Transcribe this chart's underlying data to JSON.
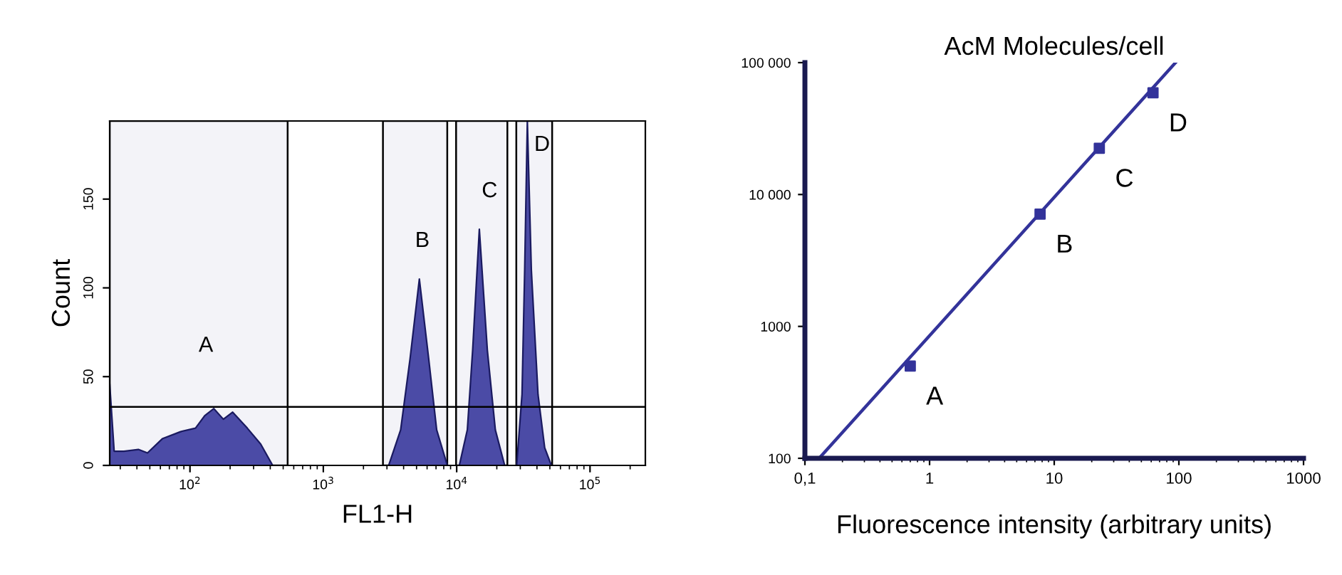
{
  "chart_data": [
    {
      "type": "area",
      "xlabel": "FL1-H",
      "ylabel": "Count",
      "log": "x",
      "xlim": [
        25,
        260000
      ],
      "ylim": [
        0,
        194
      ],
      "xticks": [
        {
          "value": 100,
          "label": "10$^{2}$"
        },
        {
          "value": 1000,
          "label": "10$^{3}$"
        },
        {
          "value": 10000,
          "label": "10$^{4}$"
        },
        {
          "value": 100000,
          "label": "10$^{5}$"
        }
      ],
      "yticks": [
        0,
        50,
        100,
        150
      ],
      "series": [
        {
          "color": "#4b4ba6",
          "x": [
            25,
            27,
            32,
            41,
            48,
            62,
            85,
            110,
            129,
            151,
            178,
            209,
            269,
            339,
            417,
            3090,
            3800,
            4470,
            5250,
            6170,
            7080,
            8510,
            10470,
            12020,
            13180,
            14790,
            16980,
            19500,
            22910,
            28180,
            30900,
            32360,
            33880,
            36310,
            40740,
            45710,
            51290
          ],
          "values": [
            46,
            8,
            8,
            9,
            7,
            15,
            19,
            21,
            28,
            32,
            26,
            30,
            21,
            12,
            0,
            0,
            20,
            60,
            105,
            60,
            20,
            0,
            0,
            20,
            65,
            133,
            65,
            20,
            0,
            0,
            40,
            110,
            194,
            110,
            40,
            10,
            0
          ]
        }
      ],
      "bands": [
        {
          "axis": "x",
          "from": 25,
          "to": 540,
          "label": "A",
          "color": "#f3f3f8"
        },
        {
          "axis": "x",
          "from": 2800,
          "to": 8500,
          "label": "B",
          "color": "#f3f3f8"
        },
        {
          "axis": "x",
          "from": 9900,
          "to": 24000,
          "label": "C",
          "color": "#f3f3f8"
        },
        {
          "axis": "x",
          "from": 28000,
          "to": 52000,
          "label": "D",
          "color": "#f3f3f8"
        }
      ],
      "ref_lines": [
        {
          "axis": "y",
          "value": 33,
          "color": "#000000"
        }
      ]
    },
    {
      "type": "scatter",
      "title": "AcM Molecules/cell",
      "xlabel": "Fluorescence intensity (arbitrary units)",
      "log": "xy",
      "xlim": [
        0.1,
        1000
      ],
      "ylim": [
        100,
        100000
      ],
      "xticks": [
        {
          "value": 0.1,
          "label": "0,1"
        },
        1,
        10,
        100,
        1000
      ],
      "yticks": [
        100,
        1000,
        {
          "value": 10000,
          "label": "10 000"
        },
        {
          "value": 100000,
          "label": "100 000"
        }
      ],
      "series": [
        {
          "type": "line",
          "color": "#33339a",
          "x": [
            0.13,
            94
          ],
          "values": [
            100,
            100000
          ]
        },
        {
          "type": "scatter",
          "marker": "square",
          "color": "#33339a",
          "x": [
            0.7,
            7.7,
            23,
            62
          ],
          "values": [
            500,
            7100,
            22400,
            59000
          ]
        }
      ],
      "annotations": [
        {
          "text": "A",
          "x": 0.7,
          "y": 500
        },
        {
          "text": "B",
          "x": 7.7,
          "y": 7100
        },
        {
          "text": "C",
          "x": 23,
          "y": 22400
        },
        {
          "text": "D",
          "x": 62,
          "y": 59000
        }
      ]
    }
  ]
}
